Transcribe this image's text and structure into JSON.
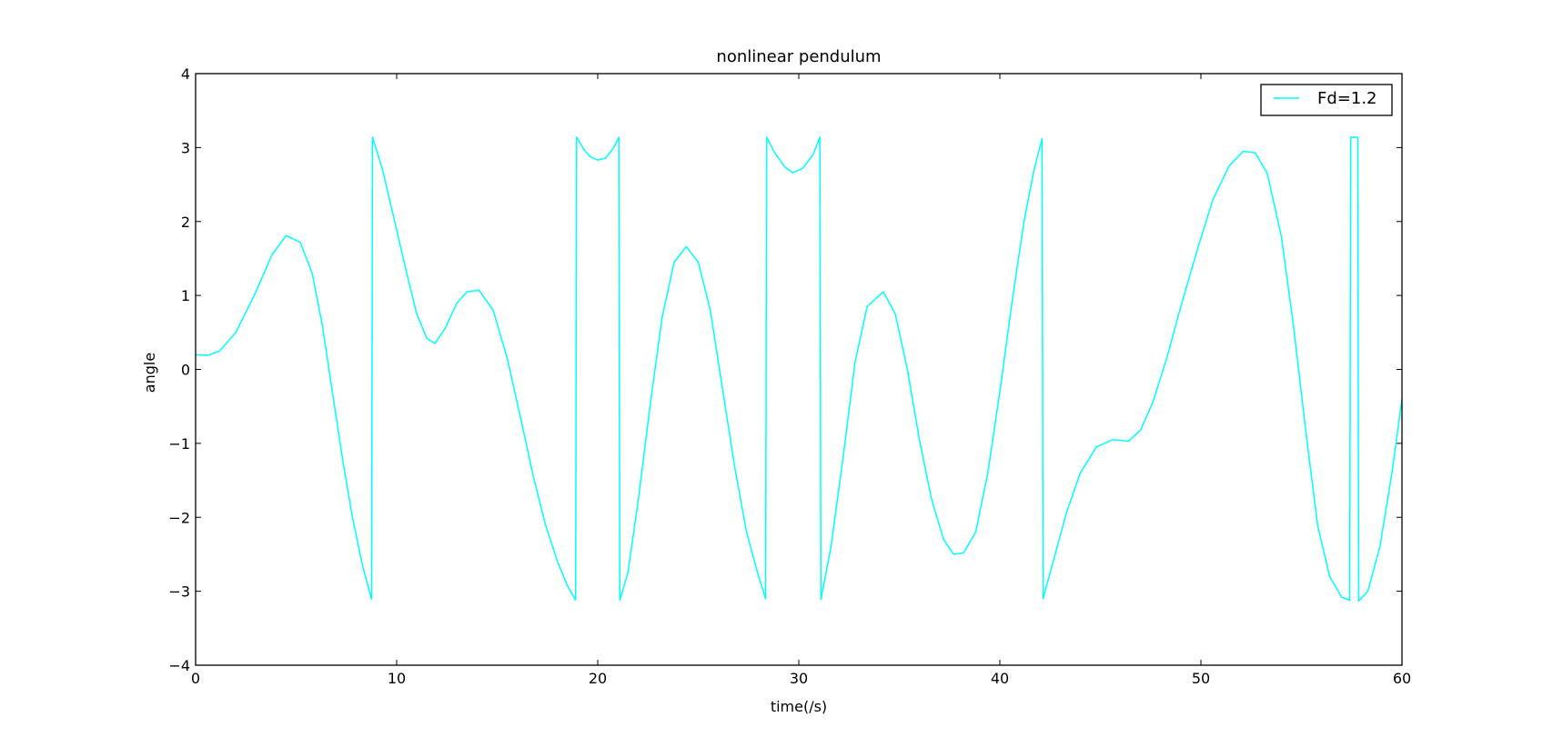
{
  "chart_data": {
    "type": "line",
    "title": "nonlinear pendulum",
    "xlabel": "time(/s)",
    "ylabel": "angle",
    "xlim": [
      0,
      60
    ],
    "ylim": [
      -4,
      4
    ],
    "xticks": [
      0,
      10,
      20,
      30,
      40,
      50,
      60
    ],
    "yticks": [
      -4,
      -3,
      -2,
      -1,
      0,
      1,
      2,
      3,
      4
    ],
    "xtick_labels": [
      "0",
      "10",
      "20",
      "30",
      "40",
      "50",
      "60"
    ],
    "ytick_labels": [
      "−4",
      "−3",
      "−2",
      "−1",
      "0",
      "1",
      "2",
      "3",
      "4"
    ],
    "grid": false,
    "legend_position": "top-right",
    "series": [
      {
        "name": "Fd=1.2",
        "color": "#00ffff",
        "points": [
          [
            0,
            0.2
          ],
          [
            0.6,
            0.19
          ],
          [
            1.2,
            0.25
          ],
          [
            2,
            0.5
          ],
          [
            3,
            1.05
          ],
          [
            3.8,
            1.55
          ],
          [
            4.5,
            1.81
          ],
          [
            5.2,
            1.72
          ],
          [
            5.8,
            1.3
          ],
          [
            6.3,
            0.6
          ],
          [
            6.8,
            -0.3
          ],
          [
            7.3,
            -1.2
          ],
          [
            7.8,
            -2.0
          ],
          [
            8.3,
            -2.65
          ],
          [
            8.75,
            -3.11
          ],
          [
            8.8,
            3.14
          ],
          [
            9.3,
            2.7
          ],
          [
            9.9,
            2.0
          ],
          [
            10.5,
            1.3
          ],
          [
            11.0,
            0.75
          ],
          [
            11.5,
            0.42
          ],
          [
            11.9,
            0.35
          ],
          [
            12.4,
            0.55
          ],
          [
            13.0,
            0.9
          ],
          [
            13.5,
            1.05
          ],
          [
            14.1,
            1.07
          ],
          [
            14.8,
            0.8
          ],
          [
            15.5,
            0.15
          ],
          [
            16.2,
            -0.7
          ],
          [
            16.8,
            -1.45
          ],
          [
            17.4,
            -2.1
          ],
          [
            18.0,
            -2.6
          ],
          [
            18.5,
            -2.93
          ],
          [
            18.9,
            -3.12
          ],
          [
            18.95,
            3.14
          ],
          [
            19.3,
            2.98
          ],
          [
            19.6,
            2.88
          ],
          [
            20.0,
            2.83
          ],
          [
            20.4,
            2.86
          ],
          [
            20.8,
            3.0
          ],
          [
            21.05,
            3.14
          ],
          [
            21.1,
            -3.12
          ],
          [
            21.5,
            -2.75
          ],
          [
            22.0,
            -1.8
          ],
          [
            22.6,
            -0.5
          ],
          [
            23.2,
            0.7
          ],
          [
            23.8,
            1.45
          ],
          [
            24.4,
            1.66
          ],
          [
            25.0,
            1.45
          ],
          [
            25.6,
            0.8
          ],
          [
            26.2,
            -0.25
          ],
          [
            26.8,
            -1.3
          ],
          [
            27.4,
            -2.2
          ],
          [
            28.0,
            -2.8
          ],
          [
            28.35,
            -3.1
          ],
          [
            28.4,
            3.14
          ],
          [
            28.8,
            2.93
          ],
          [
            29.3,
            2.74
          ],
          [
            29.7,
            2.66
          ],
          [
            30.2,
            2.72
          ],
          [
            30.7,
            2.9
          ],
          [
            31.05,
            3.14
          ],
          [
            31.1,
            -3.11
          ],
          [
            31.6,
            -2.4
          ],
          [
            32.2,
            -1.2
          ],
          [
            32.8,
            0.1
          ],
          [
            33.4,
            0.85
          ],
          [
            34.2,
            1.05
          ],
          [
            34.8,
            0.75
          ],
          [
            35.4,
            0.0
          ],
          [
            36.0,
            -0.95
          ],
          [
            36.6,
            -1.75
          ],
          [
            37.2,
            -2.3
          ],
          [
            37.7,
            -2.5
          ],
          [
            38.2,
            -2.48
          ],
          [
            38.8,
            -2.2
          ],
          [
            39.4,
            -1.4
          ],
          [
            40.0,
            -0.3
          ],
          [
            40.6,
            0.9
          ],
          [
            41.2,
            2.0
          ],
          [
            41.7,
            2.7
          ],
          [
            42.1,
            3.12
          ],
          [
            42.15,
            -3.1
          ],
          [
            42.7,
            -2.55
          ],
          [
            43.3,
            -1.95
          ],
          [
            44.0,
            -1.4
          ],
          [
            44.8,
            -1.05
          ],
          [
            45.6,
            -0.95
          ],
          [
            46.4,
            -0.97
          ],
          [
            47.0,
            -0.82
          ],
          [
            47.6,
            -0.45
          ],
          [
            48.3,
            0.15
          ],
          [
            49.0,
            0.85
          ],
          [
            49.8,
            1.6
          ],
          [
            50.6,
            2.3
          ],
          [
            51.4,
            2.75
          ],
          [
            52.1,
            2.95
          ],
          [
            52.7,
            2.93
          ],
          [
            53.3,
            2.65
          ],
          [
            54.0,
            1.8
          ],
          [
            54.6,
            0.6
          ],
          [
            55.2,
            -0.8
          ],
          [
            55.8,
            -2.1
          ],
          [
            56.4,
            -2.8
          ],
          [
            57.0,
            -3.08
          ],
          [
            57.4,
            -3.12
          ],
          [
            57.45,
            3.14
          ],
          [
            57.6,
            3.14
          ],
          [
            57.8,
            3.14
          ],
          [
            57.85,
            -3.13
          ],
          [
            58.3,
            -3.0
          ],
          [
            58.9,
            -2.4
          ],
          [
            59.5,
            -1.4
          ],
          [
            60.0,
            -0.4
          ]
        ]
      }
    ]
  }
}
